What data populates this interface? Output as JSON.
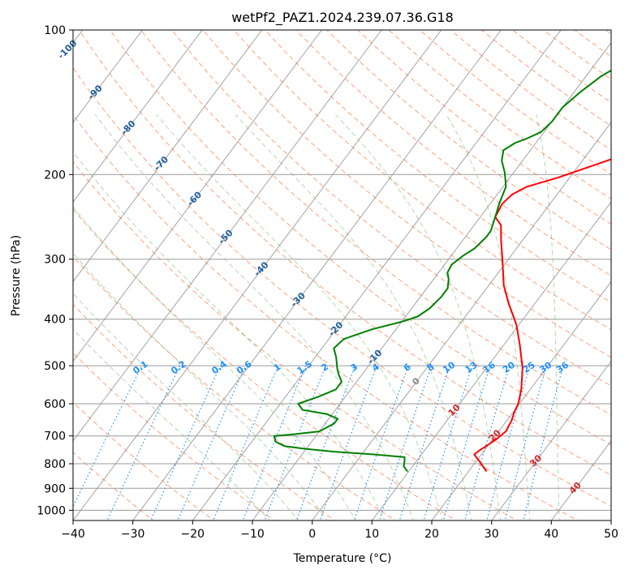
{
  "chart_data": {
    "type": "line",
    "title": "wetPf2_PAZ1.2024.239.07.36.G18",
    "xlabel": "Temperature (°C)",
    "ylabel": "Pressure (hPa)",
    "xlim": [
      -40,
      50
    ],
    "ylim": [
      1050,
      100
    ],
    "y_scale": "log",
    "grid": true,
    "x_ticks": [
      "−40",
      "−30",
      "−20",
      "−10",
      "0",
      "10",
      "20",
      "30",
      "40",
      "50"
    ],
    "y_ticks": [
      "100",
      "200",
      "300",
      "400",
      "500",
      "600",
      "700",
      "800",
      "900",
      "1000"
    ],
    "skew_t": true,
    "series": [
      {
        "color": "#ff0000",
        "points": [
          [
            23,
            830
          ],
          [
            20.5,
            790
          ],
          [
            18.8,
            765
          ],
          [
            19.2,
            750
          ],
          [
            20.5,
            715
          ],
          [
            21.2,
            685
          ],
          [
            20.8,
            650
          ],
          [
            20.2,
            625
          ],
          [
            19.8,
            600
          ],
          [
            18.5,
            560
          ],
          [
            16,
            505
          ],
          [
            12.5,
            450
          ],
          [
            9.5,
            410
          ],
          [
            5.5,
            370
          ],
          [
            2.5,
            340
          ],
          [
            -1,
            300
          ],
          [
            -3.5,
            275
          ],
          [
            -5.5,
            255
          ],
          [
            -7.5,
            245
          ],
          [
            -8,
            230
          ],
          [
            -7.5,
            220
          ],
          [
            -6,
            212
          ],
          [
            -2,
            203
          ],
          [
            3,
            190
          ],
          [
            7,
            180
          ],
          [
            9.5,
            170
          ],
          [
            11,
            160
          ],
          [
            12,
            150
          ],
          [
            14,
            140
          ],
          [
            17,
            130
          ],
          [
            20,
            120
          ],
          [
            22.5,
            112
          ],
          [
            24.5,
            104
          ],
          [
            25.3,
            100
          ]
        ]
      },
      {
        "color": "#008000",
        "points": [
          [
            9.8,
            830
          ],
          [
            8.5,
            810
          ],
          [
            8,
            790
          ],
          [
            7.5,
            775
          ],
          [
            2,
            765
          ],
          [
            -5,
            755
          ],
          [
            -10,
            745
          ],
          [
            -14,
            735
          ],
          [
            -16,
            720
          ],
          [
            -17,
            700
          ],
          [
            -14,
            695
          ],
          [
            -10,
            685
          ],
          [
            -8.5,
            660
          ],
          [
            -8.5,
            645
          ],
          [
            -11,
            630
          ],
          [
            -15.5,
            618
          ],
          [
            -17,
            600
          ],
          [
            -14.5,
            580
          ],
          [
            -12.5,
            560
          ],
          [
            -12.5,
            540
          ],
          [
            -14,
            520
          ],
          [
            -15,
            505
          ],
          [
            -16.5,
            480
          ],
          [
            -18,
            460
          ],
          [
            -17.5,
            440
          ],
          [
            -14,
            420
          ],
          [
            -10,
            405
          ],
          [
            -8,
            395
          ],
          [
            -7,
            380
          ],
          [
            -6.5,
            360
          ],
          [
            -6.5,
            345
          ],
          [
            -7.5,
            330
          ],
          [
            -8.5,
            320
          ],
          [
            -8.8,
            308
          ],
          [
            -8,
            295
          ],
          [
            -7,
            285
          ],
          [
            -6.5,
            270
          ],
          [
            -6.5,
            262
          ],
          [
            -7.5,
            245
          ],
          [
            -8.5,
            230
          ],
          [
            -9.5,
            212
          ],
          [
            -11.5,
            198
          ],
          [
            -13.5,
            187
          ],
          [
            -14.5,
            178
          ],
          [
            -13.5,
            172
          ],
          [
            -12,
            168
          ],
          [
            -10.5,
            163
          ],
          [
            -10,
            155
          ],
          [
            -10,
            145
          ],
          [
            -9,
            135
          ],
          [
            -7.5,
            125
          ],
          [
            -5,
            116
          ],
          [
            -2,
            108
          ],
          [
            0.5,
            100
          ]
        ]
      }
    ],
    "isotherm_labels": [
      "-100",
      "-90",
      "-80",
      "-70",
      "-60",
      "-50",
      "-40",
      "-30",
      "-20",
      "-10",
      "0",
      "10",
      "20",
      "30",
      "40"
    ],
    "mixing_ratio_labels": [
      "0.1",
      "0.2",
      "0.4",
      "0.6",
      "1",
      "1.5",
      "2",
      "3",
      "4",
      "6",
      "8",
      "10",
      "13",
      "16",
      "20",
      "25",
      "30",
      "36"
    ]
  }
}
